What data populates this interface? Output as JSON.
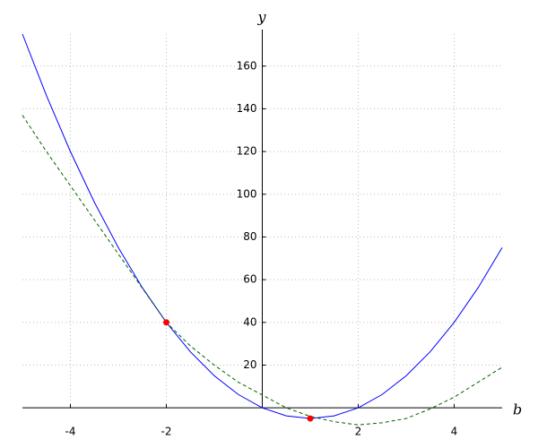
{
  "chart_data": {
    "type": "line",
    "xlabel": "b",
    "ylabel": "y",
    "x": [
      -5,
      -4.5,
      -4,
      -3.5,
      -3,
      -2.5,
      -2,
      -1.5,
      -1,
      -0.5,
      0,
      0.5,
      1,
      1.5,
      2,
      2.5,
      3,
      3.5,
      4,
      4.5,
      5
    ],
    "series": [
      {
        "color": "#0000ff",
        "dashed": false,
        "values": [
          175,
          146.25,
          120,
          96.25,
          75,
          56.25,
          40,
          26.25,
          15,
          6.25,
          0,
          -3.75,
          -5,
          -3.75,
          0,
          6.25,
          15,
          26.25,
          40,
          56.25,
          75
        ]
      },
      {
        "color": "#006400",
        "dashed": true,
        "values": [
          137,
          120,
          104,
          88,
          72,
          56,
          40,
          29,
          20,
          12,
          6,
          0,
          -4,
          -6.5,
          -8,
          -7,
          -5,
          -0.5,
          5,
          12,
          19
        ]
      }
    ],
    "points": {
      "color": "#ff0000",
      "x": [
        -2,
        1
      ],
      "y": [
        40,
        -5
      ]
    },
    "xlim": [
      -5,
      5
    ],
    "ylim": [
      -10,
      175
    ],
    "xticks": [
      -4,
      -2,
      2,
      4
    ],
    "yticks": [
      20,
      40,
      60,
      80,
      100,
      120,
      140,
      160
    ],
    "grid": true
  }
}
